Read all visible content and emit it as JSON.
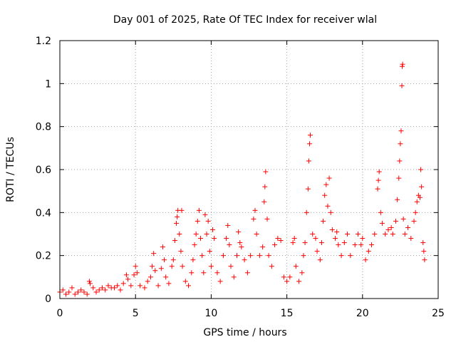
{
  "chart_data": {
    "type": "scatter",
    "title": "Day 001 of 2025, Rate Of TEC Index for receiver wlal",
    "xlabel": "GPS time / hours",
    "ylabel": "ROTI / TECUs",
    "xlim": [
      0,
      25
    ],
    "ylim": [
      0,
      1.2
    ],
    "xticks": [
      0,
      5,
      10,
      15,
      20,
      25
    ],
    "xtick_labels": [
      "0",
      "5",
      "10",
      "15",
      "20",
      "25"
    ],
    "yticks": [
      0,
      0.2,
      0.4,
      0.6,
      0.8,
      1.0,
      1.2
    ],
    "ytick_labels": [
      "0",
      "0.2",
      "0.4",
      "0.6",
      "0.8",
      "1",
      "1.2"
    ],
    "grid": true,
    "marker": "plus",
    "color": "#ff0000",
    "series": [
      {
        "name": "ROTI",
        "points": [
          [
            0.0,
            0.03
          ],
          [
            0.2,
            0.04
          ],
          [
            0.4,
            0.02
          ],
          [
            0.6,
            0.03
          ],
          [
            0.8,
            0.05
          ],
          [
            1.0,
            0.02
          ],
          [
            1.2,
            0.03
          ],
          [
            1.4,
            0.04
          ],
          [
            1.6,
            0.03
          ],
          [
            1.8,
            0.02
          ],
          [
            1.95,
            0.08
          ],
          [
            2.0,
            0.07
          ],
          [
            2.2,
            0.05
          ],
          [
            2.4,
            0.03
          ],
          [
            2.6,
            0.04
          ],
          [
            2.8,
            0.05
          ],
          [
            3.0,
            0.04
          ],
          [
            3.2,
            0.06
          ],
          [
            3.4,
            0.05
          ],
          [
            3.6,
            0.05
          ],
          [
            3.8,
            0.06
          ],
          [
            4.0,
            0.04
          ],
          [
            4.2,
            0.07
          ],
          [
            4.4,
            0.11
          ],
          [
            4.5,
            0.09
          ],
          [
            4.7,
            0.06
          ],
          [
            4.9,
            0.11
          ],
          [
            5.0,
            0.15
          ],
          [
            5.1,
            0.12
          ],
          [
            5.3,
            0.06
          ],
          [
            5.6,
            0.05
          ],
          [
            5.8,
            0.08
          ],
          [
            6.0,
            0.1
          ],
          [
            6.1,
            0.15
          ],
          [
            6.2,
            0.21
          ],
          [
            6.3,
            0.13
          ],
          [
            6.5,
            0.06
          ],
          [
            6.7,
            0.14
          ],
          [
            6.8,
            0.24
          ],
          [
            6.9,
            0.18
          ],
          [
            7.0,
            0.1
          ],
          [
            7.2,
            0.07
          ],
          [
            7.4,
            0.15
          ],
          [
            7.5,
            0.18
          ],
          [
            7.6,
            0.27
          ],
          [
            7.7,
            0.35
          ],
          [
            7.75,
            0.38
          ],
          [
            7.8,
            0.41
          ],
          [
            7.9,
            0.3
          ],
          [
            8.0,
            0.22
          ],
          [
            8.05,
            0.41
          ],
          [
            8.1,
            0.15
          ],
          [
            8.3,
            0.08
          ],
          [
            8.5,
            0.06
          ],
          [
            8.7,
            0.12
          ],
          [
            8.8,
            0.18
          ],
          [
            8.9,
            0.25
          ],
          [
            9.0,
            0.3
          ],
          [
            9.1,
            0.36
          ],
          [
            9.2,
            0.41
          ],
          [
            9.3,
            0.28
          ],
          [
            9.4,
            0.2
          ],
          [
            9.5,
            0.12
          ],
          [
            9.6,
            0.39
          ],
          [
            9.7,
            0.3
          ],
          [
            9.8,
            0.36
          ],
          [
            9.9,
            0.22
          ],
          [
            10.0,
            0.15
          ],
          [
            10.1,
            0.32
          ],
          [
            10.2,
            0.28
          ],
          [
            10.4,
            0.12
          ],
          [
            10.6,
            0.08
          ],
          [
            10.8,
            0.2
          ],
          [
            11.0,
            0.28
          ],
          [
            11.1,
            0.34
          ],
          [
            11.2,
            0.25
          ],
          [
            11.3,
            0.15
          ],
          [
            11.5,
            0.1
          ],
          [
            11.7,
            0.2
          ],
          [
            11.8,
            0.31
          ],
          [
            11.9,
            0.26
          ],
          [
            12.0,
            0.24
          ],
          [
            12.2,
            0.18
          ],
          [
            12.4,
            0.12
          ],
          [
            12.6,
            0.2
          ],
          [
            12.8,
            0.37
          ],
          [
            12.9,
            0.41
          ],
          [
            13.0,
            0.3
          ],
          [
            13.2,
            0.2
          ],
          [
            13.4,
            0.24
          ],
          [
            13.5,
            0.45
          ],
          [
            13.55,
            0.52
          ],
          [
            13.6,
            0.59
          ],
          [
            13.7,
            0.37
          ],
          [
            13.8,
            0.2
          ],
          [
            14.0,
            0.15
          ],
          [
            14.2,
            0.25
          ],
          [
            14.4,
            0.28
          ],
          [
            14.6,
            0.27
          ],
          [
            14.8,
            0.1
          ],
          [
            15.0,
            0.08
          ],
          [
            15.2,
            0.1
          ],
          [
            15.4,
            0.26
          ],
          [
            15.5,
            0.28
          ],
          [
            15.6,
            0.15
          ],
          [
            15.8,
            0.08
          ],
          [
            16.0,
            0.12
          ],
          [
            16.1,
            0.2
          ],
          [
            16.2,
            0.26
          ],
          [
            16.3,
            0.4
          ],
          [
            16.4,
            0.51
          ],
          [
            16.45,
            0.64
          ],
          [
            16.5,
            0.72
          ],
          [
            16.55,
            0.76
          ],
          [
            16.7,
            0.3
          ],
          [
            16.9,
            0.28
          ],
          [
            17.0,
            0.22
          ],
          [
            17.2,
            0.18
          ],
          [
            17.3,
            0.26
          ],
          [
            17.4,
            0.36
          ],
          [
            17.5,
            0.48
          ],
          [
            17.6,
            0.53
          ],
          [
            17.7,
            0.43
          ],
          [
            17.8,
            0.56
          ],
          [
            17.9,
            0.4
          ],
          [
            18.0,
            0.32
          ],
          [
            18.2,
            0.28
          ],
          [
            18.3,
            0.31
          ],
          [
            18.4,
            0.25
          ],
          [
            18.6,
            0.2
          ],
          [
            18.8,
            0.26
          ],
          [
            19.0,
            0.3
          ],
          [
            19.2,
            0.2
          ],
          [
            19.5,
            0.25
          ],
          [
            19.7,
            0.3
          ],
          [
            19.9,
            0.25
          ],
          [
            20.0,
            0.28
          ],
          [
            20.2,
            0.18
          ],
          [
            20.4,
            0.22
          ],
          [
            20.6,
            0.25
          ],
          [
            20.8,
            0.3
          ],
          [
            21.0,
            0.51
          ],
          [
            21.05,
            0.55
          ],
          [
            21.1,
            0.59
          ],
          [
            21.2,
            0.4
          ],
          [
            21.3,
            0.35
          ],
          [
            21.5,
            0.3
          ],
          [
            21.7,
            0.32
          ],
          [
            21.9,
            0.33
          ],
          [
            22.0,
            0.3
          ],
          [
            22.2,
            0.36
          ],
          [
            22.3,
            0.46
          ],
          [
            22.4,
            0.56
          ],
          [
            22.45,
            0.64
          ],
          [
            22.5,
            0.72
          ],
          [
            22.55,
            0.78
          ],
          [
            22.6,
            0.99
          ],
          [
            22.62,
            1.08
          ],
          [
            22.65,
            1.09
          ],
          [
            22.7,
            0.37
          ],
          [
            22.8,
            0.3
          ],
          [
            23.0,
            0.33
          ],
          [
            23.2,
            0.28
          ],
          [
            23.4,
            0.36
          ],
          [
            23.5,
            0.4
          ],
          [
            23.6,
            0.45
          ],
          [
            23.7,
            0.48
          ],
          [
            23.8,
            0.47
          ],
          [
            23.85,
            0.6
          ],
          [
            23.9,
            0.52
          ],
          [
            24.0,
            0.26
          ],
          [
            24.05,
            0.22
          ],
          [
            24.1,
            0.18
          ]
        ]
      }
    ]
  }
}
